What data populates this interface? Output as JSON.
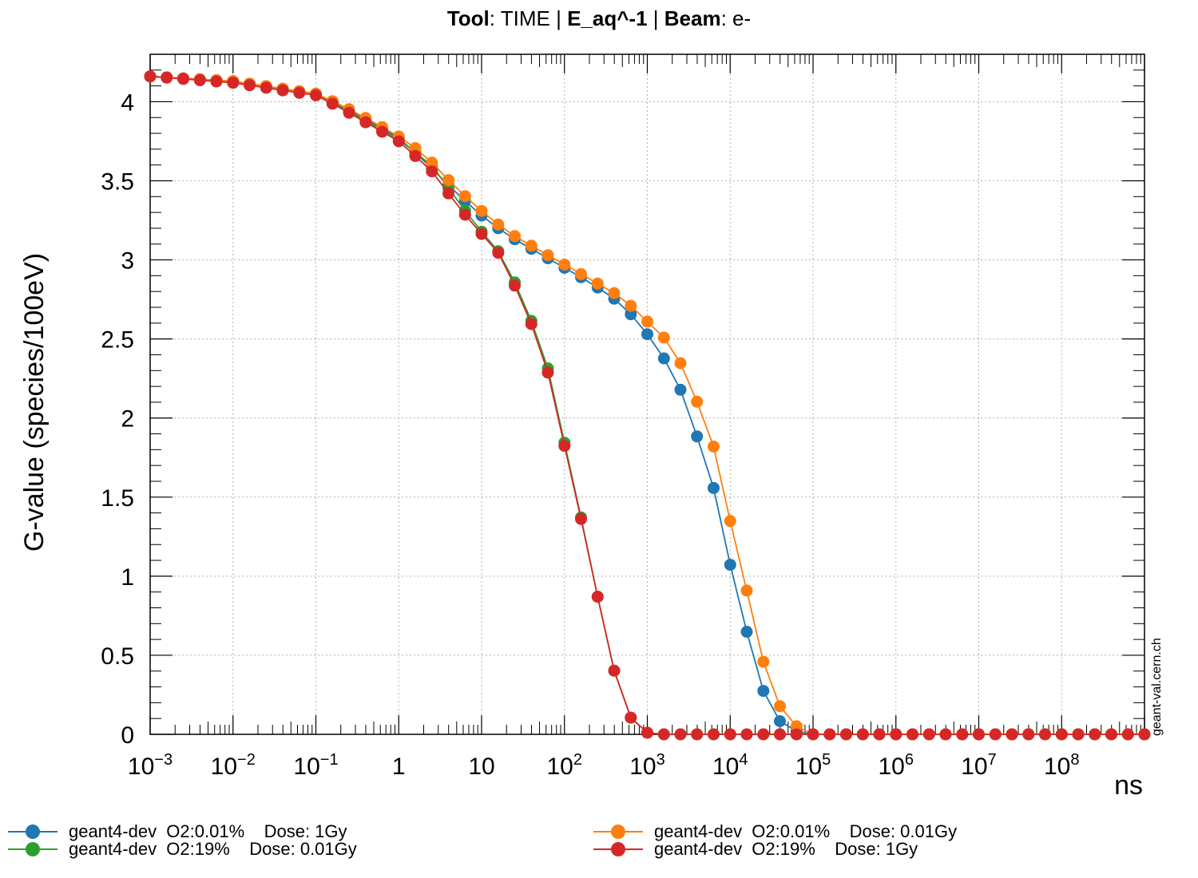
{
  "title": {
    "tool_key": "Tool",
    "tool_value": "TIME",
    "observable": "E_aq^-1",
    "beam_key": "Beam",
    "beam_value": "e-"
  },
  "watermark": "geant-val.cern.ch",
  "chart_data": {
    "type": "line",
    "ylabel": "G-value (species/100eV)",
    "xlabel": "ns",
    "xscale": "log",
    "xlim": [
      0.001,
      1000000000
    ],
    "ylim": [
      0,
      4.3
    ],
    "x_tick_labels": [
      "10^-3",
      "10^-2",
      "10^-1",
      "1",
      "10",
      "10^2",
      "10^3",
      "10^4",
      "10^5",
      "10^6",
      "10^7",
      "10^8"
    ],
    "y_ticks": [
      0,
      0.5,
      1,
      1.5,
      2,
      2.5,
      3,
      3.5,
      4
    ],
    "y_tick_labels": [
      "0",
      "0.5",
      "1",
      "1.5",
      "2",
      "2.5",
      "3",
      "3.5",
      "4"
    ],
    "grid": true,
    "legend_position": "bottom",
    "series": [
      {
        "name": "geant4-dev  O2:0.01%    Dose: 1Gy",
        "color": "#1f77b4",
        "points": [
          [
            0.001,
            4.16
          ],
          [
            0.01,
            4.13
          ],
          [
            0.1,
            4.05
          ],
          [
            0.2,
            3.97
          ],
          [
            0.5,
            3.86
          ],
          [
            1,
            3.77
          ],
          [
            2,
            3.63
          ],
          [
            5,
            3.42
          ],
          [
            10,
            3.28
          ],
          [
            20,
            3.16
          ],
          [
            50,
            3.04
          ],
          [
            100,
            2.95
          ],
          [
            200,
            2.86
          ],
          [
            500,
            2.72
          ],
          [
            1000,
            2.53
          ],
          [
            1500,
            2.4
          ],
          [
            2000,
            2.28
          ],
          [
            3000,
            2.1
          ],
          [
            4000,
            1.88
          ],
          [
            6000,
            1.61
          ],
          [
            8000,
            1.31
          ],
          [
            11000,
            0.97
          ],
          [
            16000,
            0.64
          ],
          [
            22000,
            0.36
          ],
          [
            30000,
            0.16
          ],
          [
            45000,
            0.05
          ],
          [
            70000,
            0.01
          ],
          [
            100000,
            0.0
          ],
          [
            1000000000,
            0.0
          ]
        ]
      },
      {
        "name": "geant4-dev  O2:19%    Dose: 0.01Gy",
        "color": "#2ca02c",
        "points": [
          [
            0.001,
            4.16
          ],
          [
            0.01,
            4.13
          ],
          [
            0.1,
            4.05
          ],
          [
            0.2,
            3.97
          ],
          [
            0.5,
            3.85
          ],
          [
            1,
            3.76
          ],
          [
            2,
            3.64
          ],
          [
            3,
            3.56
          ],
          [
            5,
            3.37
          ],
          [
            8,
            3.25
          ],
          [
            12,
            3.12
          ],
          [
            20,
            3.0
          ],
          [
            25,
            2.86
          ],
          [
            35,
            2.69
          ],
          [
            50,
            2.48
          ],
          [
            70,
            2.24
          ],
          [
            90,
            1.95
          ],
          [
            130,
            1.58
          ],
          [
            190,
            1.18
          ],
          [
            270,
            0.79
          ],
          [
            380,
            0.44
          ],
          [
            520,
            0.19
          ],
          [
            700,
            0.06
          ],
          [
            1000,
            0.01
          ],
          [
            1500,
            0.0
          ],
          [
            1000000000,
            0.0
          ]
        ]
      },
      {
        "name": "geant4-dev  O2:0.01%    Dose: 0.01Gy",
        "color": "#ff7f0e",
        "points": [
          [
            0.001,
            4.16
          ],
          [
            0.01,
            4.13
          ],
          [
            0.1,
            4.05
          ],
          [
            0.2,
            3.98
          ],
          [
            0.5,
            3.87
          ],
          [
            1,
            3.78
          ],
          [
            2,
            3.67
          ],
          [
            5,
            3.45
          ],
          [
            10,
            3.31
          ],
          [
            20,
            3.18
          ],
          [
            50,
            3.06
          ],
          [
            100,
            2.97
          ],
          [
            200,
            2.88
          ],
          [
            500,
            2.76
          ],
          [
            1000,
            2.61
          ],
          [
            1500,
            2.53
          ],
          [
            2000,
            2.42
          ],
          [
            3000,
            2.29
          ],
          [
            4000,
            2.1
          ],
          [
            6000,
            1.87
          ],
          [
            8000,
            1.58
          ],
          [
            11000,
            1.25
          ],
          [
            16000,
            0.9
          ],
          [
            22000,
            0.57
          ],
          [
            30000,
            0.31
          ],
          [
            45000,
            0.12
          ],
          [
            70000,
            0.03
          ],
          [
            100000,
            0.0
          ],
          [
            1000000000,
            0.0
          ]
        ]
      },
      {
        "name": "geant4-dev  O2:19%    Dose: 1Gy",
        "color": "#d62728",
        "points": [
          [
            0.001,
            4.16
          ],
          [
            0.01,
            4.12
          ],
          [
            0.1,
            4.04
          ],
          [
            0.2,
            3.96
          ],
          [
            0.5,
            3.84
          ],
          [
            1,
            3.75
          ],
          [
            2,
            3.61
          ],
          [
            3,
            3.52
          ],
          [
            5,
            3.34
          ],
          [
            8,
            3.23
          ],
          [
            12,
            3.11
          ],
          [
            20,
            2.99
          ],
          [
            25,
            2.84
          ],
          [
            35,
            2.67
          ],
          [
            50,
            2.46
          ],
          [
            70,
            2.21
          ],
          [
            90,
            1.93
          ],
          [
            130,
            1.56
          ],
          [
            190,
            1.18
          ],
          [
            270,
            0.79
          ],
          [
            380,
            0.44
          ],
          [
            520,
            0.19
          ],
          [
            700,
            0.06
          ],
          [
            1000,
            0.01
          ],
          [
            1500,
            0.0
          ],
          [
            1000000000,
            0.0
          ]
        ]
      }
    ]
  }
}
